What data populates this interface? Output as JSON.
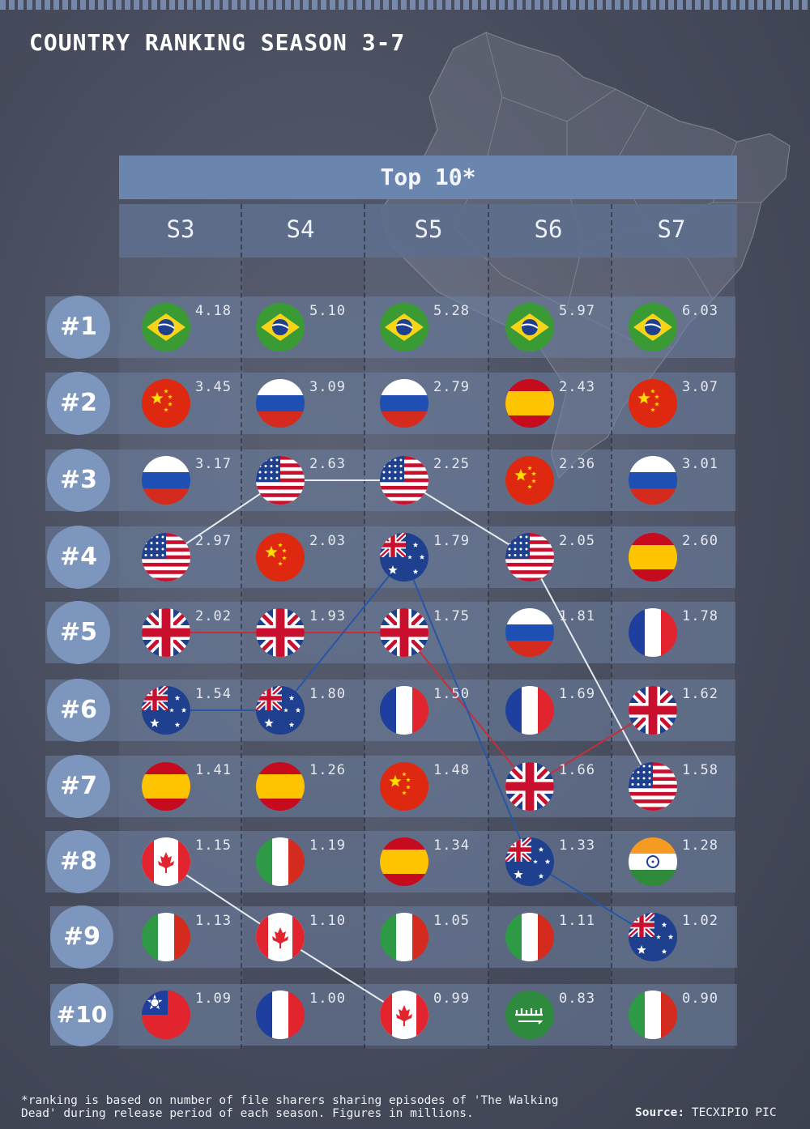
{
  "title": "COUNTRY RANKING SEASON 3-7",
  "footnote": "*ranking is based on number of file sharers sharing episodes of 'The Walking Dead' during release period of each season. Figures in millions.",
  "source": {
    "label": "Source:",
    "value": "TECXIPIO PIC"
  },
  "colors": {
    "background": "#474c5c",
    "header": "#6a86ae",
    "rank_badge": "#7d96bd",
    "usa_line": "#e8ecf2",
    "uk_line": "#c62e3a",
    "australia_line": "#2656a8",
    "canada_line": "#e8ecf2"
  },
  "chart_data": {
    "type": "table",
    "title": "COUNTRY RANKING SEASON 3-7",
    "subtitle": "Top 10*",
    "seasons": [
      "S3",
      "S4",
      "S5",
      "S6",
      "S7"
    ],
    "ranks": [
      "#1",
      "#2",
      "#3",
      "#4",
      "#5",
      "#6",
      "#7",
      "#8",
      "#9",
      "#10"
    ],
    "table": [
      [
        {
          "country": "brazil",
          "value": "4.18"
        },
        {
          "country": "brazil",
          "value": "5.10"
        },
        {
          "country": "brazil",
          "value": "5.28"
        },
        {
          "country": "brazil",
          "value": "5.97"
        },
        {
          "country": "brazil",
          "value": "6.03"
        }
      ],
      [
        {
          "country": "china",
          "value": "3.45"
        },
        {
          "country": "russia",
          "value": "3.09"
        },
        {
          "country": "russia",
          "value": "2.79"
        },
        {
          "country": "spain",
          "value": "2.43"
        },
        {
          "country": "china",
          "value": "3.07"
        }
      ],
      [
        {
          "country": "russia",
          "value": "3.17"
        },
        {
          "country": "usa",
          "value": "2.63"
        },
        {
          "country": "usa",
          "value": "2.25"
        },
        {
          "country": "china",
          "value": "2.36"
        },
        {
          "country": "russia",
          "value": "3.01"
        }
      ],
      [
        {
          "country": "usa",
          "value": "2.97"
        },
        {
          "country": "china",
          "value": "2.03"
        },
        {
          "country": "australia",
          "value": "1.79"
        },
        {
          "country": "usa",
          "value": "2.05"
        },
        {
          "country": "spain",
          "value": "2.60"
        }
      ],
      [
        {
          "country": "uk",
          "value": "2.02"
        },
        {
          "country": "uk",
          "value": "1.93"
        },
        {
          "country": "uk",
          "value": "1.75"
        },
        {
          "country": "russia",
          "value": "1.81"
        },
        {
          "country": "france",
          "value": "1.78"
        }
      ],
      [
        {
          "country": "australia",
          "value": "1.54"
        },
        {
          "country": "australia",
          "value": "1.80"
        },
        {
          "country": "france",
          "value": "1.50"
        },
        {
          "country": "france",
          "value": "1.69"
        },
        {
          "country": "uk",
          "value": "1.62"
        }
      ],
      [
        {
          "country": "spain",
          "value": "1.41"
        },
        {
          "country": "spain",
          "value": "1.26"
        },
        {
          "country": "china",
          "value": "1.48"
        },
        {
          "country": "uk",
          "value": "1.66"
        },
        {
          "country": "usa",
          "value": "1.58"
        }
      ],
      [
        {
          "country": "canada",
          "value": "1.15"
        },
        {
          "country": "italy",
          "value": "1.19"
        },
        {
          "country": "spain",
          "value": "1.34"
        },
        {
          "country": "australia",
          "value": "1.33"
        },
        {
          "country": "india",
          "value": "1.28"
        }
      ],
      [
        {
          "country": "italy",
          "value": "1.13"
        },
        {
          "country": "canada",
          "value": "1.10"
        },
        {
          "country": "italy",
          "value": "1.05"
        },
        {
          "country": "italy",
          "value": "1.11"
        },
        {
          "country": "australia",
          "value": "1.02"
        }
      ],
      [
        {
          "country": "taiwan",
          "value": "1.09"
        },
        {
          "country": "france",
          "value": "1.00"
        },
        {
          "country": "canada",
          "value": "0.99"
        },
        {
          "country": "saudi_arabia",
          "value": "0.83"
        },
        {
          "country": "italy",
          "value": "0.90"
        }
      ]
    ],
    "tracked_lines": [
      {
        "country": "usa",
        "color": "#e8ecf2",
        "ranks": [
          4,
          3,
          3,
          4,
          7
        ]
      },
      {
        "country": "uk",
        "color": "#c62e3a",
        "ranks": [
          5,
          5,
          5,
          7,
          6
        ]
      },
      {
        "country": "australia",
        "color": "#2656a8",
        "ranks": [
          6,
          6,
          4,
          8,
          9
        ]
      },
      {
        "country": "canada",
        "color": "#e8ecf2",
        "ranks": [
          8,
          9,
          10
        ]
      }
    ]
  }
}
